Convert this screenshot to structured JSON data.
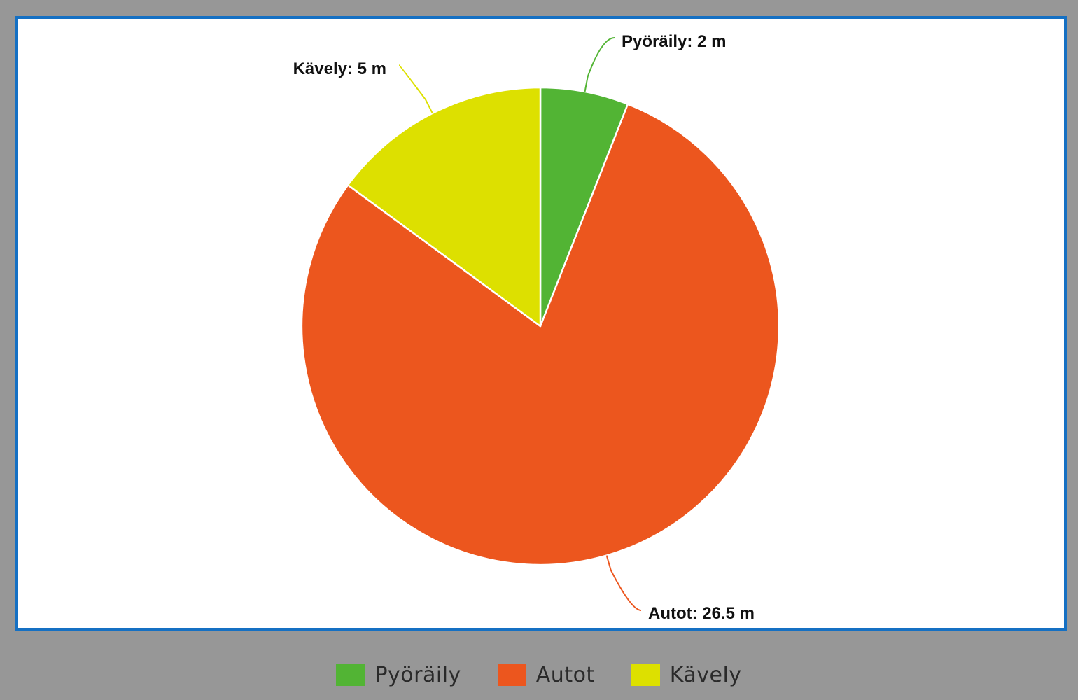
{
  "chart_data": {
    "type": "pie",
    "unit": "m",
    "start_angle_deg": 0,
    "direction": "clockwise",
    "slices": [
      {
        "name": "Pyöräily",
        "value": 2,
        "label": "Pyöräily: 2 m",
        "color": "#52b434"
      },
      {
        "name": "Autot",
        "value": 26.5,
        "label": "Autot: 26.5 m",
        "color": "#ec561e"
      },
      {
        "name": "Kävely",
        "value": 5,
        "label": "Kävely: 5 m",
        "color": "#dde000"
      }
    ],
    "legend": {
      "placement": "bottom",
      "entries": [
        "Pyöräily",
        "Autot",
        "Kävely"
      ]
    }
  },
  "colors": {
    "background": "#979797",
    "panel": "#ffffff",
    "panel_border": "#1570c3"
  }
}
